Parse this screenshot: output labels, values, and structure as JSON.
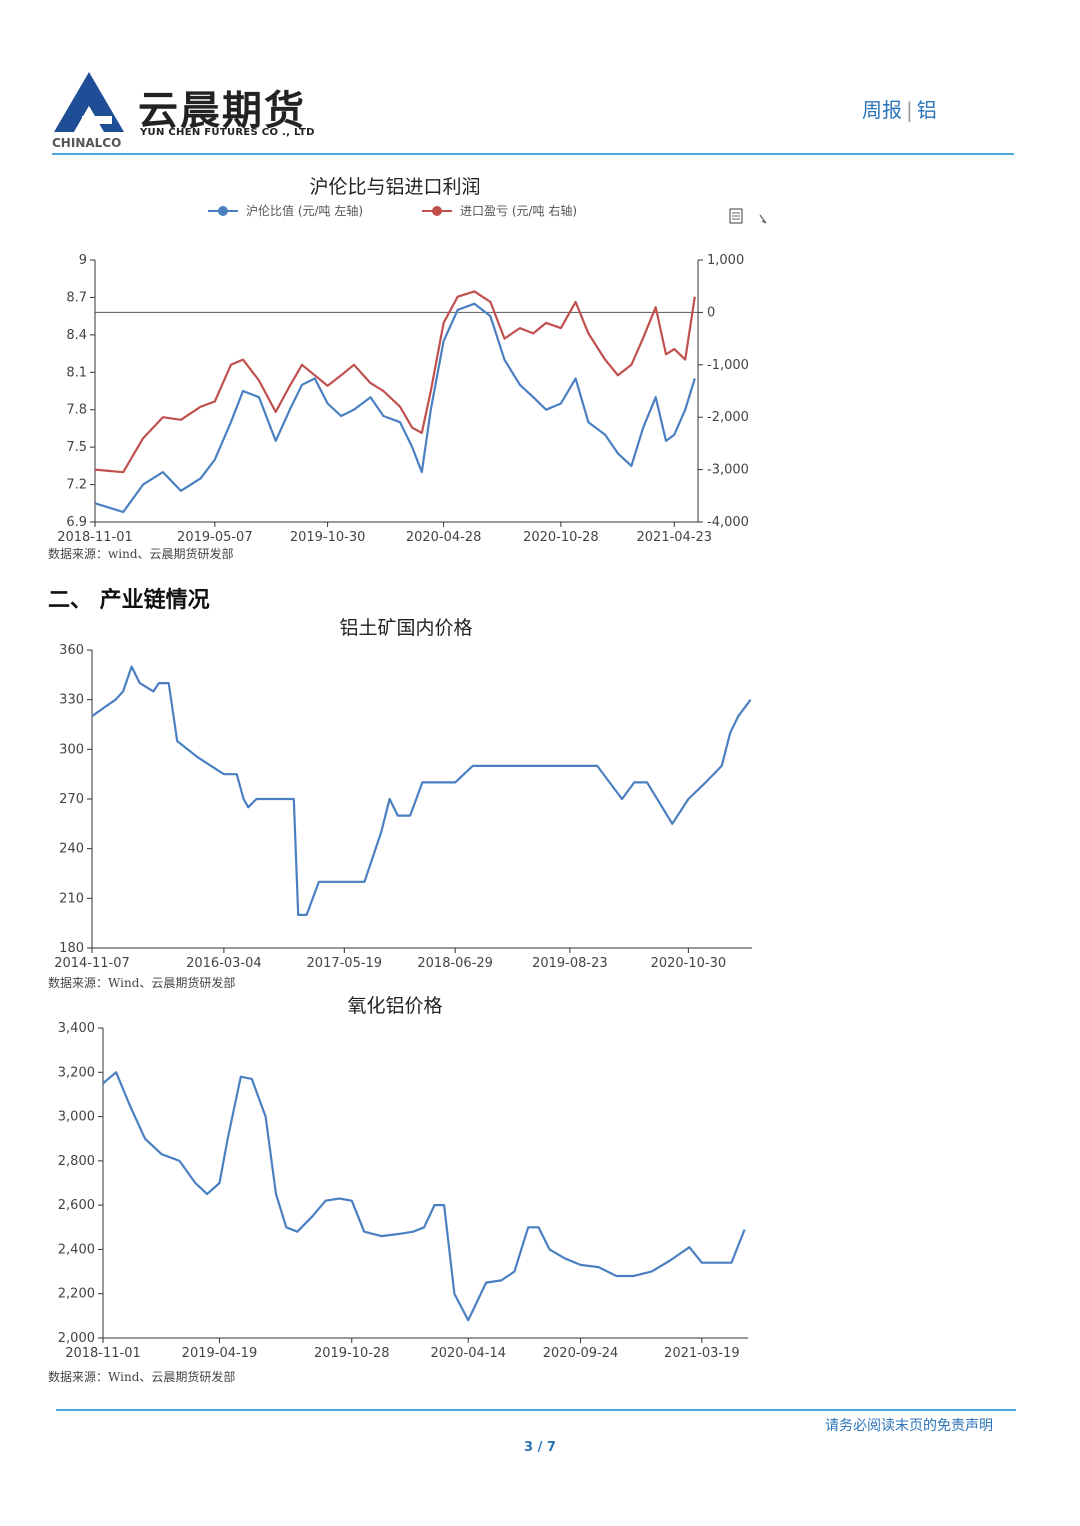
{
  "header": {
    "brand_cn": "云晨期货",
    "brand_en": "YUN CHEN FUTURES CO ., LTD",
    "brand_sub": "CHINALCO",
    "report_type": "周报",
    "report_subject": "铝",
    "accent_color": "#2a73b8"
  },
  "section": {
    "title": "二、 产业链情况"
  },
  "footer": {
    "disclaimer": "请务必阅读末页的免责声明",
    "page": "3 / 7"
  },
  "chart_data": [
    {
      "type": "line",
      "title": "沪伦比与铝进口利润",
      "legend_position": "top",
      "toolbar_icons": [
        "document-icon",
        "refresh-icon"
      ],
      "x_ticks": [
        "2018-11-01",
        "2019-05-07",
        "2019-10-30",
        "2020-04-28",
        "2020-10-28",
        "2021-04-23"
      ],
      "y_left": {
        "ticks": [
          "6.9",
          "7.2",
          "7.5",
          "7.8",
          "8.1",
          "8.4",
          "8.7",
          "9"
        ],
        "lim": [
          6.9,
          9
        ]
      },
      "y_right": {
        "ticks": [
          "-4,000",
          "-3,000",
          "-2,000",
          "-1,000",
          "0",
          "1,000"
        ],
        "lim": [
          -4000,
          1000
        ]
      },
      "source": "数据来源：wind、云晨期货研发部",
      "series": [
        {
          "name": "沪伦比值 (元/吨 左轴)",
          "axis": "left",
          "color": "#4a7fc1",
          "x": [
            "2018-11-01",
            "2018-12-15",
            "2019-01-15",
            "2019-02-15",
            "2019-03-15",
            "2019-04-15",
            "2019-05-07",
            "2019-06-01",
            "2019-06-20",
            "2019-07-15",
            "2019-08-10",
            "2019-09-01",
            "2019-09-20",
            "2019-10-10",
            "2019-10-30",
            "2019-11-20",
            "2019-12-10",
            "2020-01-05",
            "2020-01-25",
            "2020-02-20",
            "2020-03-10",
            "2020-03-25",
            "2020-04-08",
            "2020-04-28",
            "2020-05-20",
            "2020-06-15",
            "2020-07-10",
            "2020-08-01",
            "2020-08-25",
            "2020-09-15",
            "2020-10-05",
            "2020-10-28",
            "2020-11-20",
            "2020-12-10",
            "2021-01-05",
            "2021-01-25",
            "2021-02-15",
            "2021-03-05",
            "2021-03-25",
            "2021-04-10",
            "2021-04-23",
            "2021-05-10",
            "2021-05-25"
          ],
          "values": [
            7.05,
            6.98,
            7.2,
            7.3,
            7.15,
            7.25,
            7.4,
            7.7,
            7.95,
            7.9,
            7.55,
            7.8,
            8.0,
            8.05,
            7.85,
            7.75,
            7.8,
            7.9,
            7.75,
            7.7,
            7.5,
            7.3,
            7.8,
            8.35,
            8.6,
            8.65,
            8.55,
            8.2,
            8.0,
            7.9,
            7.8,
            7.85,
            8.05,
            7.7,
            7.6,
            7.45,
            7.35,
            7.65,
            7.9,
            7.55,
            7.6,
            7.8,
            8.05
          ]
        },
        {
          "name": "进口盈亏 (元/吨 右轴)",
          "axis": "right",
          "color": "#c0504d",
          "x": [
            "2018-11-01",
            "2018-12-15",
            "2019-01-15",
            "2019-02-15",
            "2019-03-15",
            "2019-04-15",
            "2019-05-07",
            "2019-06-01",
            "2019-06-20",
            "2019-07-15",
            "2019-08-10",
            "2019-09-01",
            "2019-09-20",
            "2019-10-10",
            "2019-10-30",
            "2019-11-20",
            "2019-12-10",
            "2020-01-05",
            "2020-01-25",
            "2020-02-20",
            "2020-03-10",
            "2020-03-25",
            "2020-04-08",
            "2020-04-28",
            "2020-05-20",
            "2020-06-15",
            "2020-07-10",
            "2020-08-01",
            "2020-08-25",
            "2020-09-15",
            "2020-10-05",
            "2020-10-28",
            "2020-11-20",
            "2020-12-10",
            "2021-01-05",
            "2021-01-25",
            "2021-02-15",
            "2021-03-05",
            "2021-03-25",
            "2021-04-10",
            "2021-04-23",
            "2021-05-10",
            "2021-05-25"
          ],
          "values": [
            -3000,
            -3050,
            -2400,
            -2000,
            -2050,
            -1800,
            -1700,
            -1000,
            -900,
            -1300,
            -1900,
            -1400,
            -1000,
            -1200,
            -1400,
            -1200,
            -1000,
            -1350,
            -1500,
            -1800,
            -2200,
            -2300,
            -1500,
            -200,
            300,
            400,
            200,
            -500,
            -300,
            -400,
            -200,
            -300,
            200,
            -400,
            -900,
            -1200,
            -1000,
            -500,
            100,
            -800,
            -700,
            -900,
            300
          ]
        }
      ]
    },
    {
      "type": "line",
      "title": "铝土矿国内价格",
      "x_ticks": [
        "2014-11-07",
        "2016-03-04",
        "2017-05-19",
        "2018-06-29",
        "2019-08-23",
        "2020-10-30"
      ],
      "y": {
        "ticks": [
          "180",
          "210",
          "240",
          "270",
          "300",
          "330",
          "360"
        ],
        "lim": [
          180,
          360
        ]
      },
      "source": "数据来源：Wind、云晨期货研发部",
      "series": [
        {
          "color": "#4a7fc1",
          "x": [
            "2014-11-07",
            "2014-12-20",
            "2015-02-01",
            "2015-03-01",
            "2015-04-01",
            "2015-05-01",
            "2015-06-20",
            "2015-07-10",
            "2015-08-15",
            "2015-09-15",
            "2015-12-01",
            "2016-03-04",
            "2016-04-20",
            "2016-05-15",
            "2016-06-01",
            "2016-07-01",
            "2016-09-01",
            "2016-11-15",
            "2016-12-01",
            "2017-01-01",
            "2017-02-15",
            "2017-05-19",
            "2017-08-01",
            "2017-10-01",
            "2017-11-01",
            "2017-12-01",
            "2018-01-15",
            "2018-03-01",
            "2018-06-29",
            "2018-09-01",
            "2019-01-01",
            "2019-08-23",
            "2019-12-01",
            "2020-03-01",
            "2020-04-15",
            "2020-06-01",
            "2020-09-01",
            "2020-10-30",
            "2021-01-01",
            "2021-03-01",
            "2021-04-01",
            "2021-05-01",
            "2021-06-15"
          ],
          "values": [
            320,
            325,
            330,
            335,
            350,
            340,
            335,
            340,
            340,
            305,
            295,
            285,
            285,
            270,
            265,
            270,
            270,
            270,
            200,
            200,
            220,
            220,
            220,
            250,
            270,
            260,
            260,
            280,
            280,
            290,
            290,
            290,
            290,
            270,
            280,
            280,
            255,
            270,
            280,
            290,
            310,
            320,
            330
          ]
        }
      ]
    },
    {
      "type": "line",
      "title": "氧化铝价格",
      "x_ticks": [
        "2018-11-01",
        "2019-04-19",
        "2019-10-28",
        "2020-04-14",
        "2020-09-24",
        "2021-03-19"
      ],
      "y": {
        "ticks": [
          "2,000",
          "2,200",
          "2,400",
          "2,600",
          "2,800",
          "3,000",
          "3,200",
          "3,400"
        ],
        "lim": [
          2000,
          3400
        ]
      },
      "source": "数据来源：Wind、云晨期货研发部",
      "series": [
        {
          "color": "#4a7fc1",
          "x": [
            "2018-11-01",
            "2018-11-20",
            "2018-12-10",
            "2019-01-01",
            "2019-01-25",
            "2019-02-20",
            "2019-03-15",
            "2019-04-01",
            "2019-04-19",
            "2019-05-01",
            "2019-05-20",
            "2019-06-05",
            "2019-06-25",
            "2019-07-10",
            "2019-07-25",
            "2019-08-10",
            "2019-09-01",
            "2019-09-20",
            "2019-10-10",
            "2019-10-28",
            "2019-11-15",
            "2019-12-10",
            "2020-01-05",
            "2020-01-25",
            "2020-02-10",
            "2020-02-25",
            "2020-03-10",
            "2020-03-25",
            "2020-04-14",
            "2020-05-10",
            "2020-06-01",
            "2020-06-20",
            "2020-07-10",
            "2020-07-25",
            "2020-08-10",
            "2020-09-01",
            "2020-09-24",
            "2020-10-20",
            "2020-11-15",
            "2020-12-10",
            "2021-01-05",
            "2021-02-01",
            "2021-03-01",
            "2021-03-19",
            "2021-04-10",
            "2021-05-01",
            "2021-05-20"
          ],
          "values": [
            3150,
            3200,
            3050,
            2900,
            2830,
            2800,
            2700,
            2650,
            2700,
            2900,
            3180,
            3170,
            3000,
            2650,
            2500,
            2480,
            2550,
            2620,
            2630,
            2620,
            2480,
            2460,
            2470,
            2480,
            2500,
            2600,
            2600,
            2200,
            2080,
            2250,
            2260,
            2300,
            2500,
            2500,
            2400,
            2360,
            2330,
            2320,
            2280,
            2280,
            2300,
            2350,
            2410,
            2340,
            2340,
            2340,
            2490
          ]
        }
      ]
    }
  ]
}
